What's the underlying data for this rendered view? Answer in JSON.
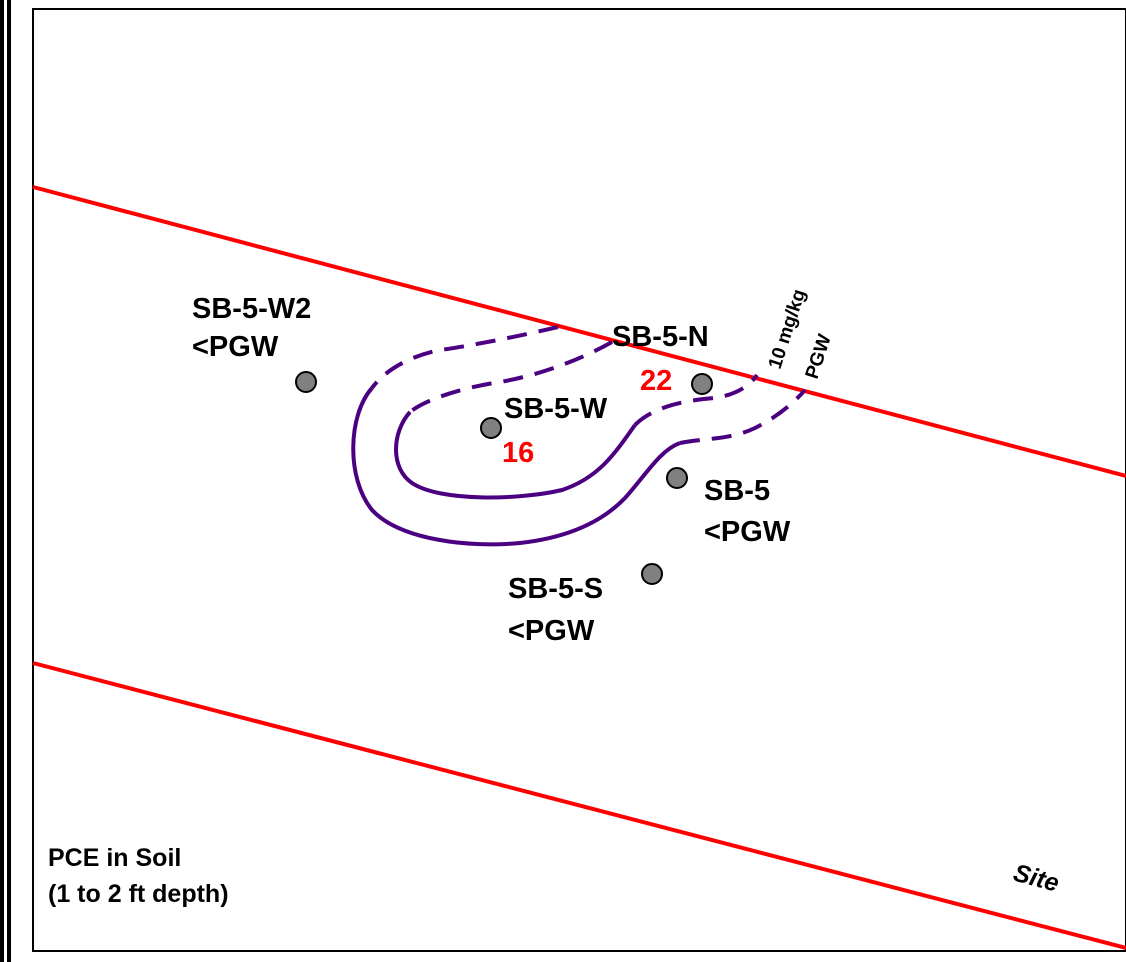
{
  "colors": {
    "site_boundary": "#ff0000",
    "contour": "#4b0082",
    "sample_point_fill": "#808080",
    "exceedance_value": "#ff0000",
    "label": "#000000"
  },
  "caption": {
    "line1": "PCE in Soil",
    "line2": "(1 to 2 ft depth)"
  },
  "site_label": "Site",
  "contour_label": {
    "line1": "10 mg/kg",
    "line2": "PGW"
  },
  "samples": [
    {
      "id": "SB-5-W2",
      "value": "<PGW"
    },
    {
      "id": "SB-5-N",
      "value": "22"
    },
    {
      "id": "SB-5-W",
      "value": "16"
    },
    {
      "id": "SB-5",
      "value": "<PGW"
    },
    {
      "id": "SB-5-S",
      "value": "<PGW"
    }
  ]
}
